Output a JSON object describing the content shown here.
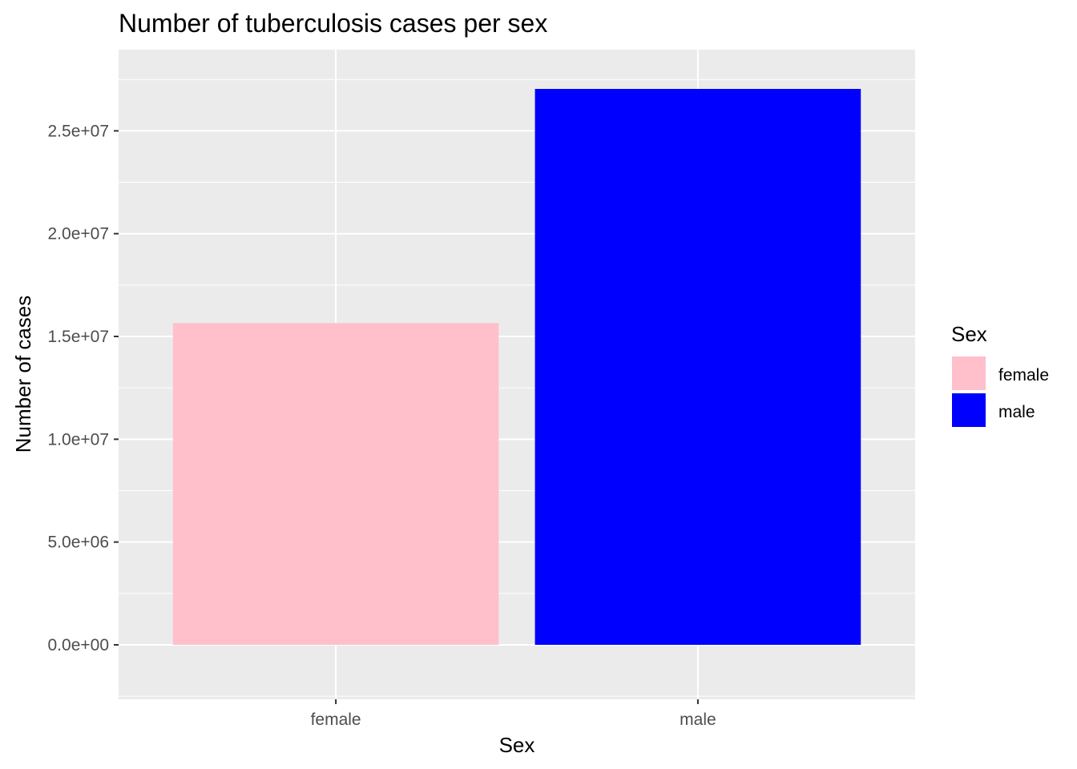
{
  "chart_data": {
    "type": "bar",
    "title": "Number of tuberculosis cases per sex",
    "xlabel": "Sex",
    "ylabel": "Number of cases",
    "categories": [
      "female",
      "male"
    ],
    "values": [
      15650000,
      27040000
    ],
    "ylim": [
      -2650000,
      28950000
    ],
    "yticks": [
      0,
      5000000,
      10000000,
      15000000,
      20000000,
      25000000
    ],
    "ytick_labels": [
      "0.0e+00",
      "5.0e+06",
      "1.0e+07",
      "1.5e+07",
      "2.0e+07",
      "2.5e+07"
    ],
    "grid": true,
    "legend": {
      "title": "Sex",
      "position": "right",
      "entries": [
        {
          "label": "female",
          "color": "#FFC0CB"
        },
        {
          "label": "male",
          "color": "#0000FF"
        }
      ]
    },
    "colors": {
      "female": "#FFC0CB",
      "male": "#0000FF"
    },
    "panel_background": "#EBEBEB",
    "grid_color": "#FFFFFF"
  }
}
